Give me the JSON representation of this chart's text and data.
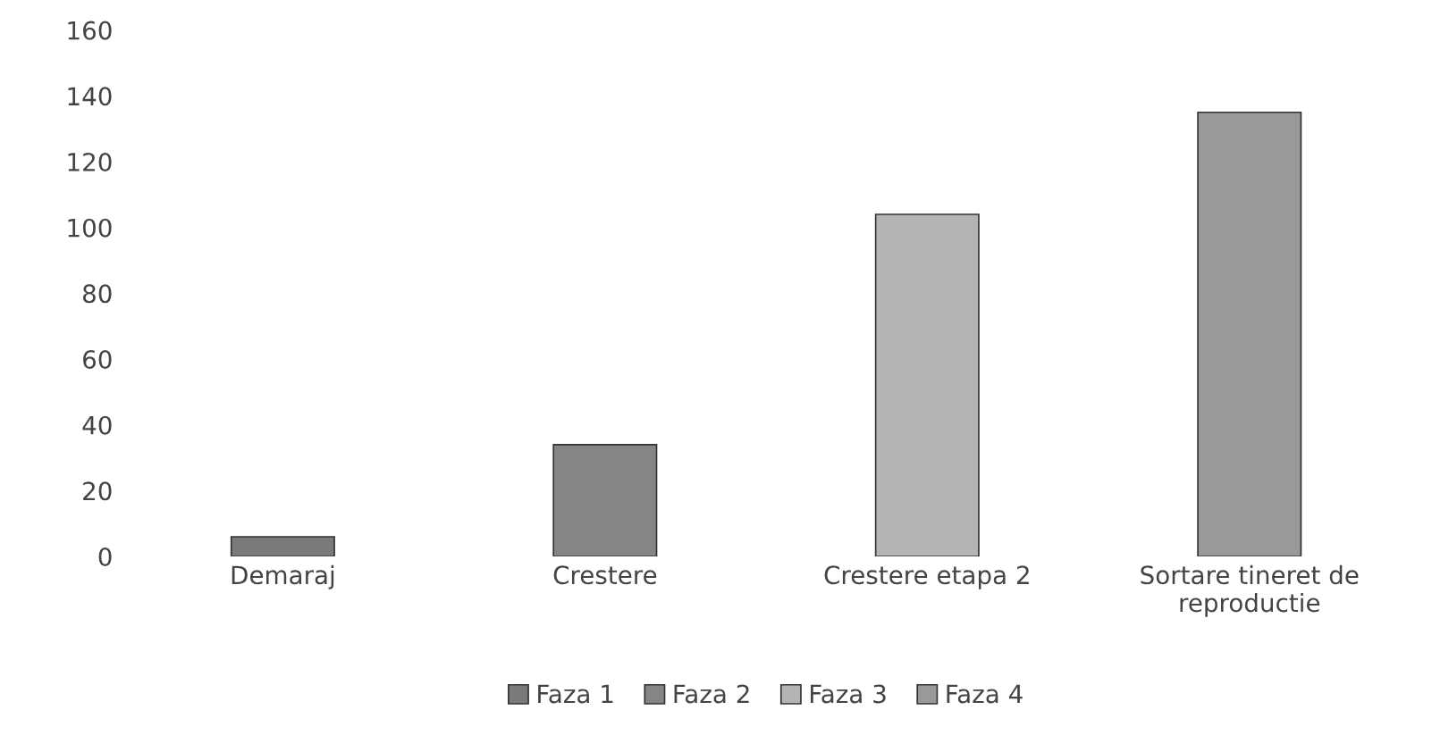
{
  "chart_data": {
    "type": "bar",
    "categories": [
      "Demaraj",
      "Crestere",
      "Crestere etapa 2",
      "Sortare tineret de\nreproductie"
    ],
    "series": [
      {
        "name": "Faza 1",
        "color": "#7a7a7a",
        "values": [
          6,
          null,
          null,
          null
        ]
      },
      {
        "name": "Faza 2",
        "color": "#858585",
        "values": [
          null,
          34,
          null,
          null
        ]
      },
      {
        "name": "Faza 3",
        "color": "#b4b4b4",
        "values": [
          null,
          null,
          104,
          null
        ]
      },
      {
        "name": "Faza 4",
        "color": "#999999",
        "values": [
          null,
          null,
          null,
          135
        ]
      }
    ],
    "ylim": [
      0,
      160
    ],
    "yticks": [
      0,
      20,
      40,
      60,
      80,
      100,
      120,
      140,
      160
    ],
    "grid": false,
    "legend": "bottom"
  }
}
